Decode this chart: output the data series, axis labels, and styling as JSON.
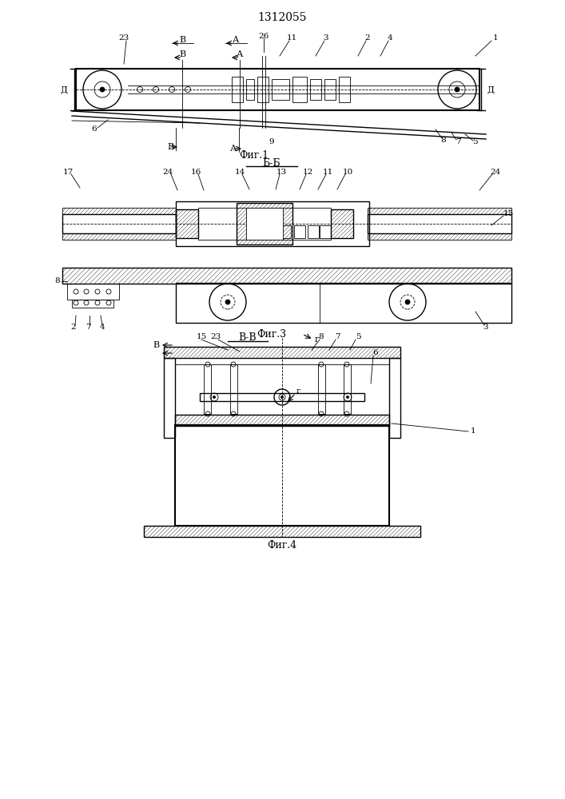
{
  "title": "1312055",
  "title_fontsize": 11,
  "fig1_label": "Фиг.1",
  "fig3_label": "Фиг.3",
  "fig4_label": "Фиг.4",
  "section_bb": "Б-Б",
  "section_vv": "В-В",
  "background": "#ffffff",
  "line_color": "#000000",
  "hatch_color": "#000000",
  "text_color": "#000000"
}
